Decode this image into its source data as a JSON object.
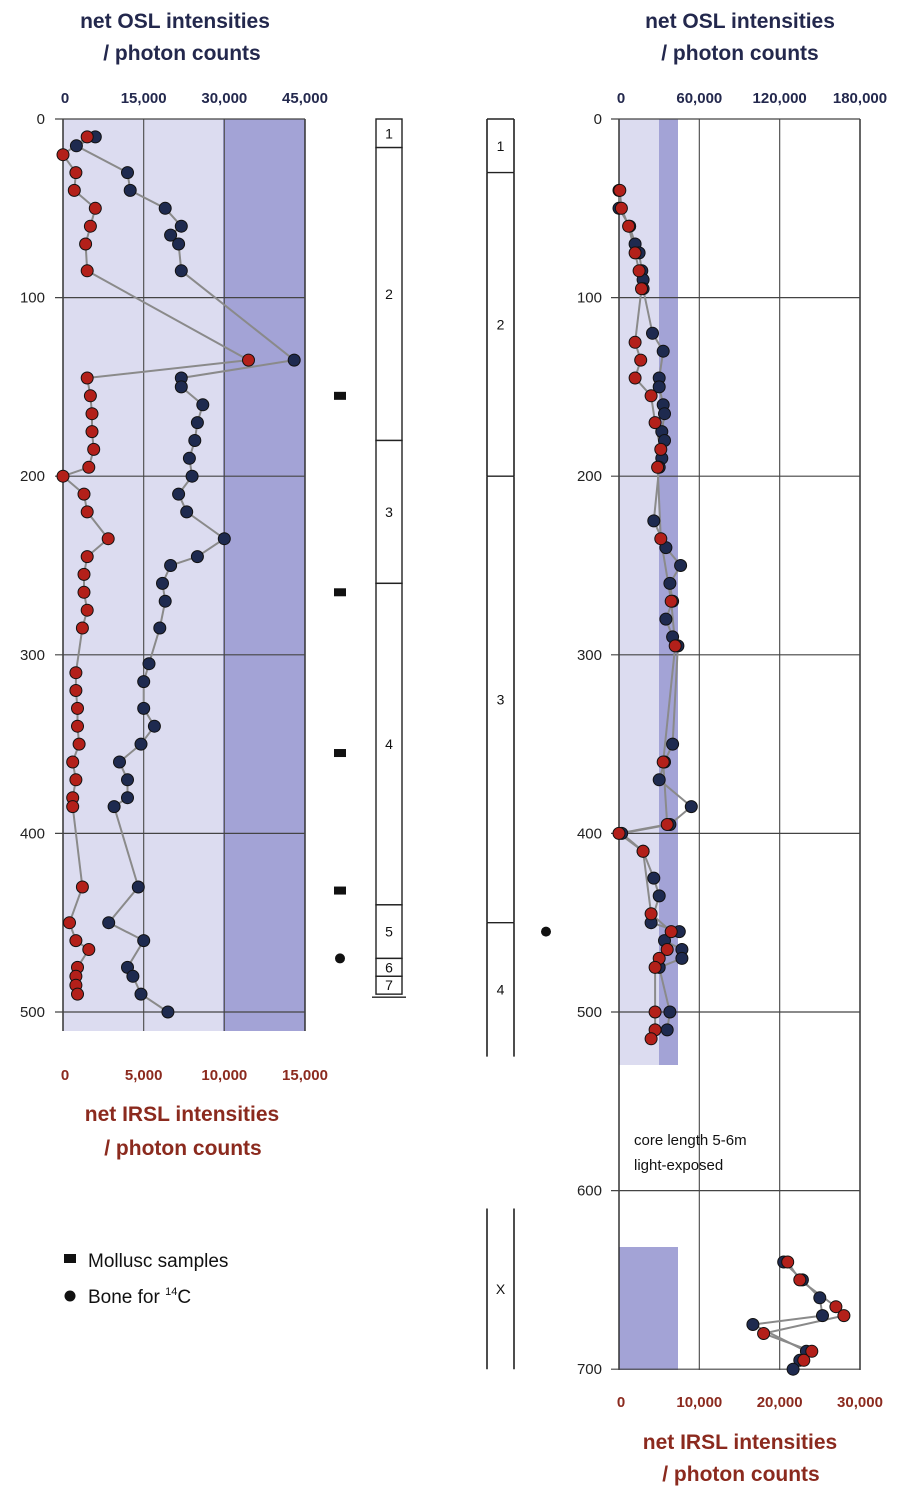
{
  "legend": {
    "mollusc_label": "Mollusc samples",
    "bone_label": "Bone for ",
    "bone_label_sup": "14",
    "bone_label_tail": "C"
  },
  "colors": {
    "osl_points": "#1e2a4f",
    "irsl_points": "#b3201a",
    "connector": "#8a8a8a",
    "band_light": "#dcdcf0",
    "band_dark": "#a3a3d6",
    "osl_text": "#23284d",
    "irsl_text": "#8b2a1e"
  },
  "chart_data": [
    {
      "type": "scatter",
      "id": "left",
      "top_axis": {
        "label_line1": "net OSL intensities",
        "label_line2": "/ photon counts",
        "ticks": [
          "0",
          "15,000",
          "30,000",
          "45,000"
        ],
        "range": [
          0,
          45000
        ]
      },
      "bottom_axis": {
        "label_line1": "net IRSL intensities",
        "label_line2": "/ photon counts",
        "ticks": [
          "0",
          "5,000",
          "10,000",
          "15,000"
        ],
        "range": [
          0,
          15000
        ]
      },
      "y_axis": {
        "ticks": [
          "0",
          "100",
          "200",
          "300",
          "400",
          "500"
        ],
        "range": [
          0,
          520
        ],
        "inverted": true
      },
      "grid": true,
      "series": [
        {
          "key": "osl",
          "x_axis": "top",
          "points": [
            [
              10,
              6000
            ],
            [
              15,
              2500
            ],
            [
              30,
              12000
            ],
            [
              40,
              12500
            ],
            [
              50,
              19000
            ],
            [
              60,
              22000
            ],
            [
              65,
              20000
            ],
            [
              70,
              21500
            ],
            [
              85,
              22000
            ],
            [
              135,
              43000
            ],
            [
              145,
              22000
            ],
            [
              150,
              22000
            ],
            [
              160,
              26000
            ],
            [
              170,
              25000
            ],
            [
              180,
              24500
            ],
            [
              190,
              23500
            ],
            [
              200,
              24000
            ],
            [
              210,
              21500
            ],
            [
              220,
              23000
            ],
            [
              235,
              30000
            ],
            [
              245,
              25000
            ],
            [
              250,
              20000
            ],
            [
              260,
              18500
            ],
            [
              270,
              19000
            ],
            [
              285,
              18000
            ],
            [
              305,
              16000
            ],
            [
              315,
              15000
            ],
            [
              330,
              15000
            ],
            [
              340,
              17000
            ],
            [
              350,
              14500
            ],
            [
              360,
              10500
            ],
            [
              370,
              12000
            ],
            [
              380,
              12000
            ],
            [
              385,
              9500
            ],
            [
              430,
              14000
            ],
            [
              450,
              8500
            ],
            [
              460,
              15000
            ],
            [
              475,
              12000
            ],
            [
              480,
              13000
            ],
            [
              490,
              14500
            ],
            [
              500,
              19500
            ]
          ]
        },
        {
          "key": "irsl",
          "x_axis": "bottom",
          "points": [
            [
              10,
              1500
            ],
            [
              20,
              0
            ],
            [
              30,
              800
            ],
            [
              40,
              700
            ],
            [
              50,
              2000
            ],
            [
              60,
              1700
            ],
            [
              70,
              1400
            ],
            [
              85,
              1500
            ],
            [
              135,
              11500
            ],
            [
              145,
              1500
            ],
            [
              155,
              1700
            ],
            [
              165,
              1800
            ],
            [
              175,
              1800
            ],
            [
              185,
              1900
            ],
            [
              195,
              1600
            ],
            [
              200,
              0
            ],
            [
              210,
              1300
            ],
            [
              220,
              1500
            ],
            [
              235,
              2800
            ],
            [
              245,
              1500
            ],
            [
              255,
              1300
            ],
            [
              265,
              1300
            ],
            [
              275,
              1500
            ],
            [
              285,
              1200
            ],
            [
              310,
              800
            ],
            [
              320,
              800
            ],
            [
              330,
              900
            ],
            [
              340,
              900
            ],
            [
              350,
              1000
            ],
            [
              360,
              600
            ],
            [
              370,
              800
            ],
            [
              380,
              600
            ],
            [
              385,
              600
            ],
            [
              430,
              1200
            ],
            [
              450,
              400
            ],
            [
              460,
              800
            ],
            [
              465,
              1600
            ],
            [
              475,
              900
            ],
            [
              480,
              800
            ],
            [
              485,
              800
            ],
            [
              490,
              900
            ]
          ]
        }
      ],
      "stratigraphy": {
        "units": [
          {
            "label": "1",
            "from": 0,
            "to": 16
          },
          {
            "label": "2",
            "from": 16,
            "to": 180
          },
          {
            "label": "3",
            "from": 180,
            "to": 260
          },
          {
            "label": "4",
            "from": 260,
            "to": 440
          },
          {
            "label": "5",
            "from": 440,
            "to": 470
          },
          {
            "label": "6",
            "from": 470,
            "to": 480
          },
          {
            "label": "7",
            "from": 480,
            "to": 490
          }
        ],
        "mollusc_depths": [
          155,
          265,
          355,
          432
        ],
        "bone_depths": [
          470
        ]
      }
    },
    {
      "type": "scatter",
      "id": "right",
      "top_axis": {
        "label_line1": "net OSL intensities",
        "label_line2": "/ photon counts",
        "ticks": [
          "0",
          "60,000",
          "120,000",
          "180,000"
        ],
        "range": [
          0,
          180000
        ]
      },
      "bottom_axis": {
        "label_line1": "net IRSL intensities",
        "label_line2": "/ photon counts",
        "ticks": [
          "0",
          "10,000",
          "20,000",
          "30,000"
        ],
        "range": [
          0,
          30000
        ]
      },
      "y_axis": {
        "ticks": [
          "0",
          "100",
          "200",
          "300",
          "400",
          "500",
          "600",
          "700"
        ],
        "range": [
          0,
          700
        ],
        "inverted": true
      },
      "grid": true,
      "annotation_line1": "core length 5-6m",
      "annotation_line2": "light-exposed",
      "series": [
        {
          "key": "osl",
          "x_axis": "top",
          "points": [
            [
              40,
              0
            ],
            [
              50,
              0
            ],
            [
              60,
              8000
            ],
            [
              70,
              12000
            ],
            [
              75,
              15000
            ],
            [
              85,
              17000
            ],
            [
              90,
              18000
            ],
            [
              95,
              18000
            ],
            [
              120,
              25000
            ],
            [
              130,
              33000
            ],
            [
              145,
              30000
            ],
            [
              150,
              30000
            ],
            [
              160,
              33000
            ],
            [
              165,
              34000
            ],
            [
              175,
              32000
            ],
            [
              180,
              34000
            ],
            [
              190,
              32000
            ],
            [
              195,
              30000
            ],
            [
              225,
              26000
            ],
            [
              240,
              35000
            ],
            [
              250,
              46000
            ],
            [
              260,
              38000
            ],
            [
              270,
              40000
            ],
            [
              280,
              35000
            ],
            [
              290,
              40000
            ],
            [
              295,
              44000
            ],
            [
              350,
              40000
            ],
            [
              360,
              34000
            ],
            [
              370,
              30000
            ],
            [
              385,
              54000
            ],
            [
              395,
              38000
            ],
            [
              400,
              2000
            ],
            [
              410,
              18000
            ],
            [
              425,
              26000
            ],
            [
              435,
              30000
            ],
            [
              450,
              24000
            ],
            [
              455,
              45000
            ],
            [
              460,
              34000
            ],
            [
              465,
              47000
            ],
            [
              470,
              47000
            ],
            [
              475,
              30000
            ],
            [
              500,
              38000
            ],
            [
              510,
              36000
            ],
            [
              640,
              123000
            ],
            [
              650,
              137000
            ],
            [
              660,
              150000
            ],
            [
              670,
              152000
            ],
            [
              675,
              100000
            ],
            [
              690,
              140000
            ],
            [
              695,
              135000
            ],
            [
              700,
              130000
            ]
          ]
        },
        {
          "key": "irsl",
          "x_axis": "bottom",
          "points": [
            [
              40,
              100
            ],
            [
              50,
              300
            ],
            [
              60,
              1200
            ],
            [
              75,
              2000
            ],
            [
              85,
              2500
            ],
            [
              95,
              2800
            ],
            [
              125,
              2000
            ],
            [
              135,
              2700
            ],
            [
              145,
              2000
            ],
            [
              155,
              4000
            ],
            [
              170,
              4500
            ],
            [
              185,
              5200
            ],
            [
              195,
              4800
            ],
            [
              235,
              5200
            ],
            [
              270,
              6500
            ],
            [
              295,
              7000
            ],
            [
              360,
              5500
            ],
            [
              395,
              6000
            ],
            [
              400,
              0
            ],
            [
              410,
              3000
            ],
            [
              445,
              4000
            ],
            [
              455,
              6500
            ],
            [
              465,
              6000
            ],
            [
              470,
              5000
            ],
            [
              475,
              4500
            ],
            [
              500,
              4500
            ],
            [
              510,
              4500
            ],
            [
              515,
              4000
            ],
            [
              640,
              21000
            ],
            [
              650,
              22500
            ],
            [
              665,
              27000
            ],
            [
              670,
              28000
            ],
            [
              680,
              18000
            ],
            [
              690,
              24000
            ],
            [
              695,
              23000
            ]
          ]
        }
      ],
      "stratigraphy": {
        "units": [
          {
            "label": "1",
            "from": 0,
            "to": 30
          },
          {
            "label": "2",
            "from": 30,
            "to": 200
          },
          {
            "label": "3",
            "from": 200,
            "to": 450
          },
          {
            "label": "4",
            "from": 450,
            "to": 525
          },
          {
            "label": "X",
            "from": 610,
            "to": 700
          }
        ],
        "bone_depths": [
          455
        ]
      }
    }
  ]
}
